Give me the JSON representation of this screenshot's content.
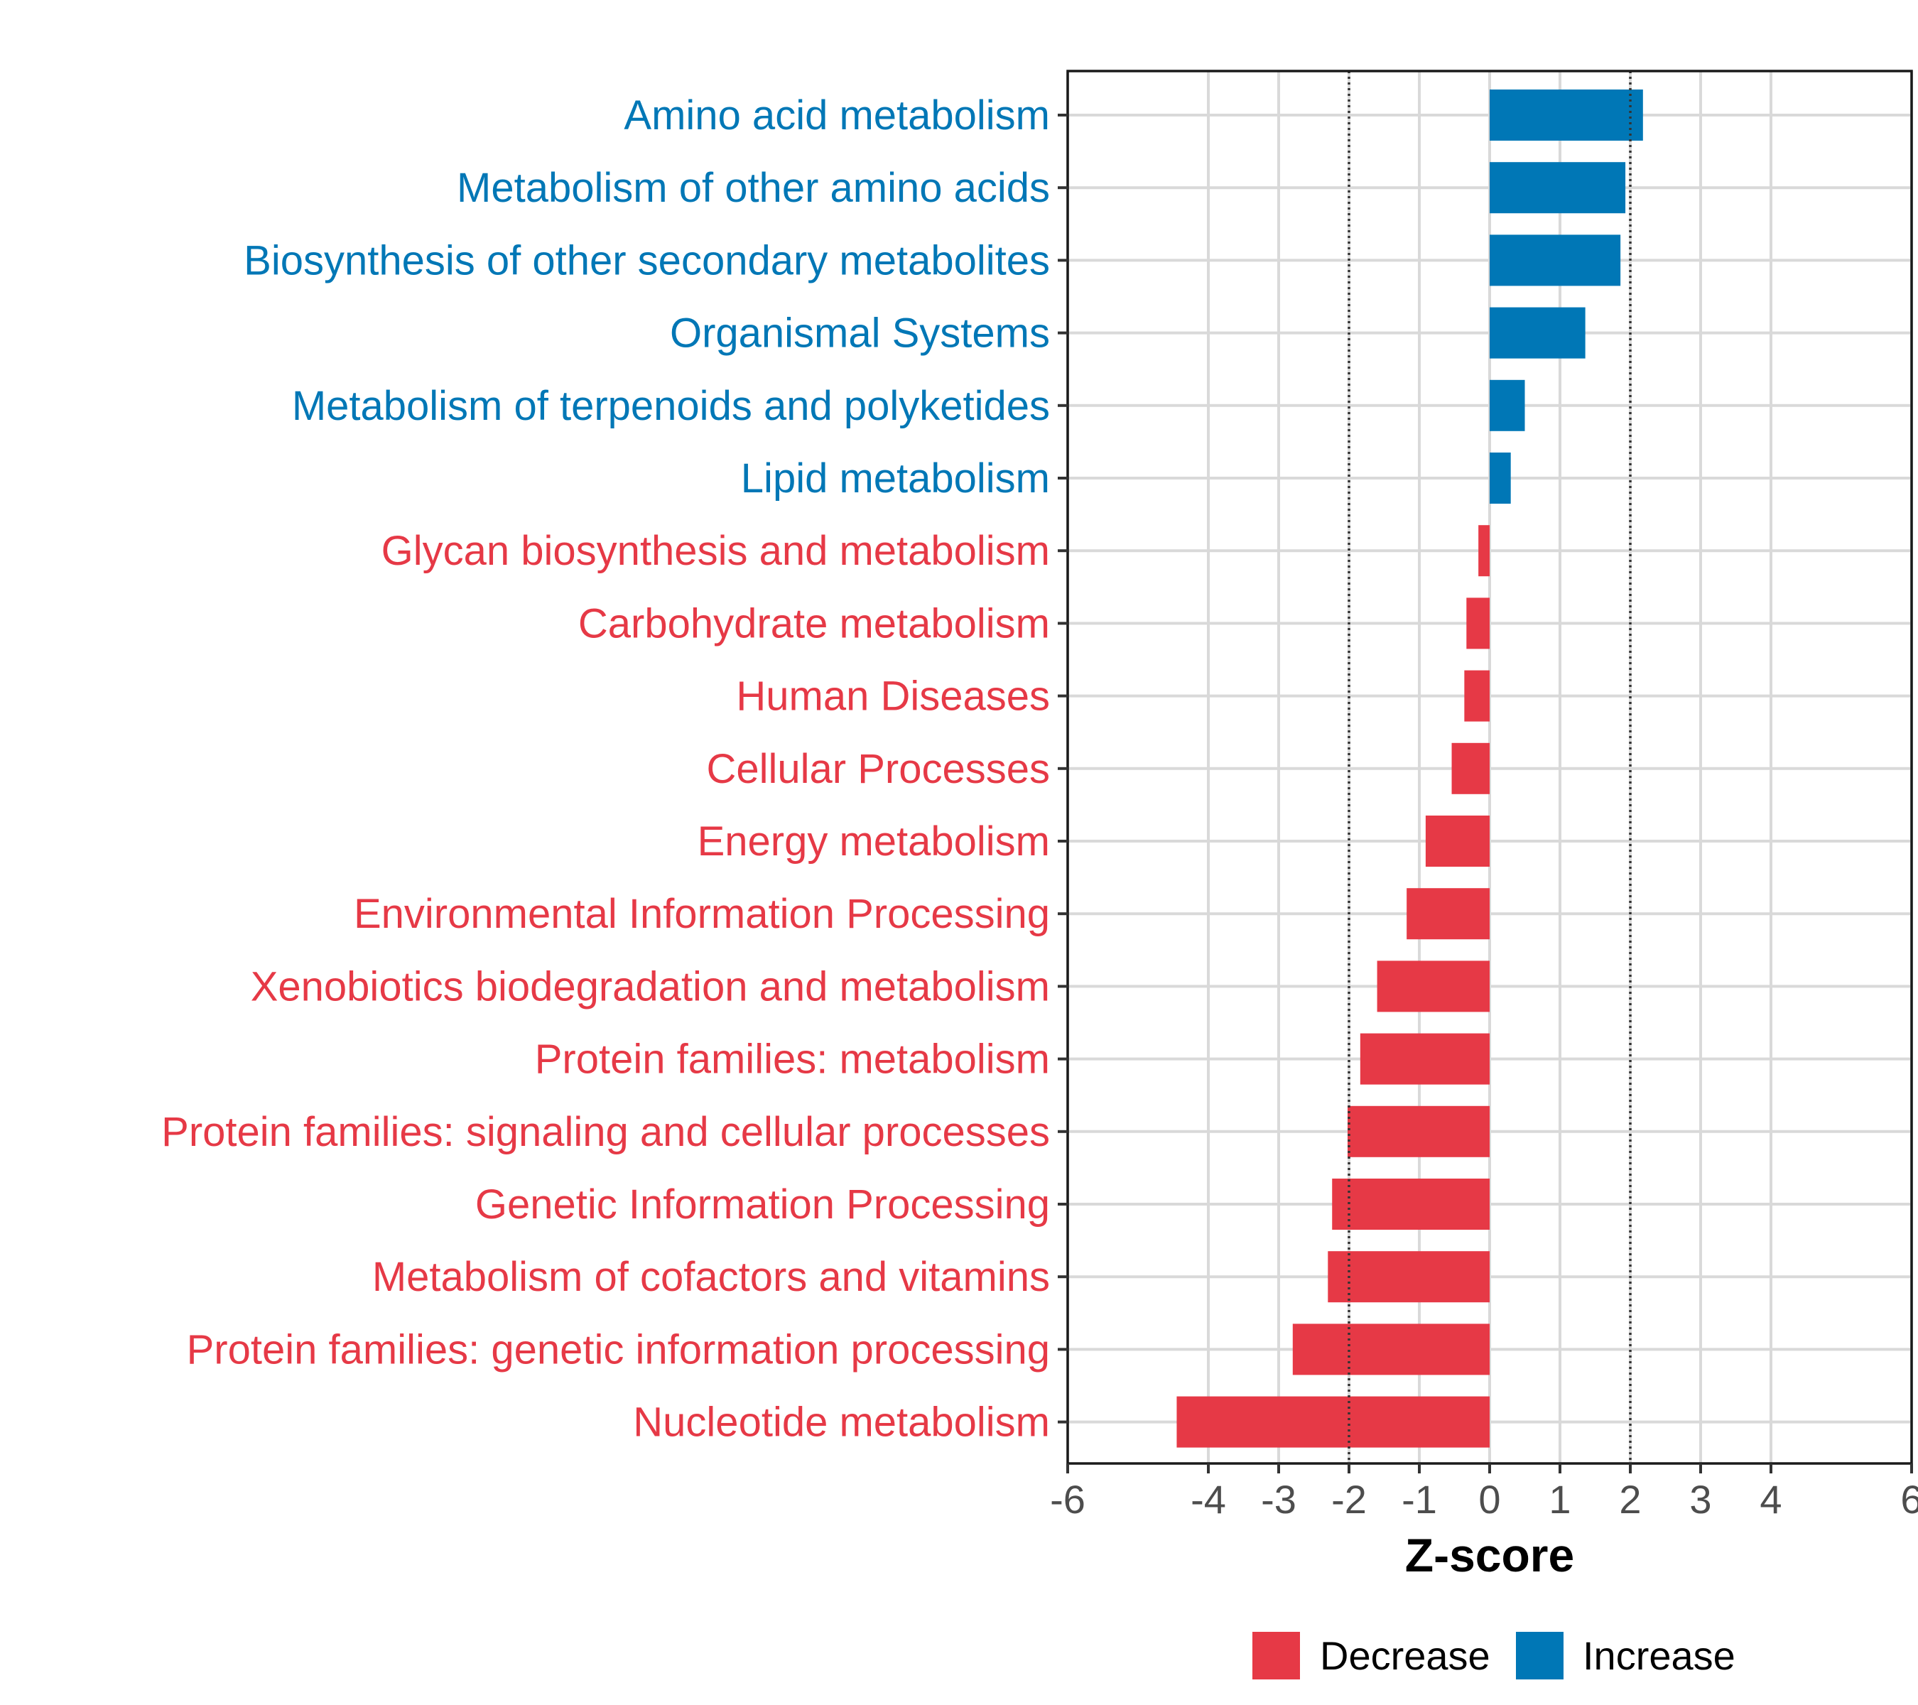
{
  "chart_data": {
    "type": "bar",
    "orientation": "horizontal",
    "title": "",
    "xlabel": "Z-score",
    "ylabel": "",
    "xlim": [
      -6,
      6
    ],
    "xticks": [
      -6,
      -4,
      -3,
      -2,
      -1,
      0,
      1,
      2,
      3,
      4,
      6
    ],
    "reference_lines": [
      -2,
      2
    ],
    "grid": true,
    "legend_position": "bottom",
    "colors": {
      "Decrease": "#e63946",
      "Increase": "#0077b6"
    },
    "legend": [
      "Decrease",
      "Increase"
    ],
    "bars": [
      {
        "category": "Amino acid metabolism",
        "value": 2.18,
        "group": "Increase"
      },
      {
        "category": "Metabolism of other amino acids",
        "value": 1.93,
        "group": "Increase"
      },
      {
        "category": "Biosynthesis of other secondary metabolites",
        "value": 1.86,
        "group": "Increase"
      },
      {
        "category": "Organismal Systems",
        "value": 1.36,
        "group": "Increase"
      },
      {
        "category": "Metabolism of terpenoids and polyketides",
        "value": 0.5,
        "group": "Increase"
      },
      {
        "category": "Lipid metabolism",
        "value": 0.3,
        "group": "Increase"
      },
      {
        "category": "Glycan biosynthesis and metabolism",
        "value": -0.16,
        "group": "Decrease"
      },
      {
        "category": "Carbohydrate metabolism",
        "value": -0.33,
        "group": "Decrease"
      },
      {
        "category": "Human Diseases",
        "value": -0.36,
        "group": "Decrease"
      },
      {
        "category": "Cellular Processes",
        "value": -0.54,
        "group": "Decrease"
      },
      {
        "category": "Energy metabolism",
        "value": -0.91,
        "group": "Decrease"
      },
      {
        "category": "Environmental Information Processing",
        "value": -1.18,
        "group": "Decrease"
      },
      {
        "category": "Xenobiotics biodegradation and metabolism",
        "value": -1.6,
        "group": "Decrease"
      },
      {
        "category": "Protein families: metabolism",
        "value": -1.84,
        "group": "Decrease"
      },
      {
        "category": "Protein families: signaling and cellular processes",
        "value": -2.02,
        "group": "Decrease"
      },
      {
        "category": "Genetic Information Processing",
        "value": -2.24,
        "group": "Decrease"
      },
      {
        "category": "Metabolism of cofactors and vitamins",
        "value": -2.3,
        "group": "Decrease"
      },
      {
        "category": "Protein families: genetic information processing",
        "value": -2.8,
        "group": "Decrease"
      },
      {
        "category": "Nucleotide metabolism",
        "value": -4.45,
        "group": "Decrease"
      }
    ]
  }
}
